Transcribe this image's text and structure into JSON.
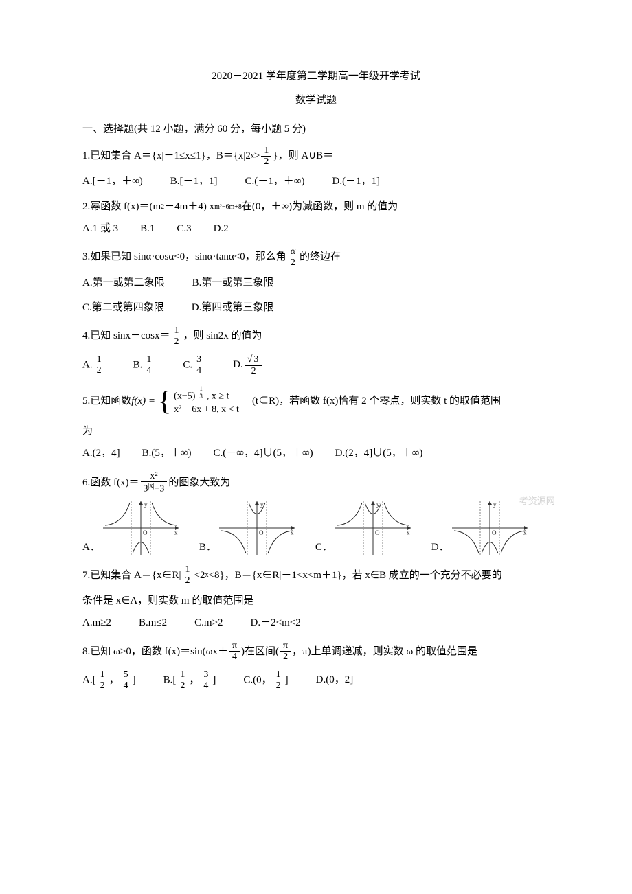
{
  "header": {
    "title": "2020－2021 学年度第二学期高一年级开学考试",
    "subtitle": "数学试题"
  },
  "section1": {
    "heading": "一、选择题(共 12 小题，满分 60 分，每小题 5 分)"
  },
  "q1": {
    "stem_a": "1.已知集合 A＝{x|－1≤x≤1}，B＝{x|2",
    "stem_sup": "x",
    "stem_b": ">",
    "frac_num": "1",
    "frac_den": "2",
    "stem_c": "}，则 A∪B＝",
    "opts": [
      "A.[－1，＋∞)",
      "B.[－1，1]",
      "C.(－1，＋∞)",
      "D.(－1，1]"
    ]
  },
  "q2": {
    "stem_a": "2.幂函数 f(x)＝(m",
    "sup1": "2",
    "stem_b": "－4m＋4) x",
    "sup2": "m²−6m+8",
    "stem_c": " 在(0，＋∞)为减函数，则 m 的值为",
    "opts": [
      "A.1 或 3",
      "B.1",
      "C.3",
      "D.2"
    ]
  },
  "q3": {
    "stem_a": "3.如果已知 sinα·cosα<0，sinα·tanα<0，那么角",
    "frac_num": "α",
    "frac_den": "2",
    "stem_b": "的终边在",
    "opts1": [
      "A.第一或第二象限",
      "B.第一或第三象限"
    ],
    "opts2": [
      "C.第二或第四象限",
      "D.第四或第三象限"
    ]
  },
  "q4": {
    "stem_a": "4.已知 sinx－cosx＝",
    "frac_num": "1",
    "frac_den": "2",
    "stem_b": "，则 sin2x 的值为",
    "optA_pre": "A.",
    "optA_num": "1",
    "optA_den": "2",
    "optB_pre": "B.",
    "optB_num": "1",
    "optB_den": "4",
    "optC_pre": "C.",
    "optC_num": "3",
    "optC_den": "4",
    "optD_pre": "D.",
    "optD_num_pre": "√",
    "optD_num_val": "3",
    "optD_den": "2"
  },
  "q5": {
    "stem_a": "5.已知函数 ",
    "fx": "f(x) =",
    "case1_a": "(x−5)",
    "case1_exp_num": "1",
    "case1_exp_den": "3",
    "case1_b": ", x ≥ t",
    "case2": "x² − 6x + 8, x < t",
    "stem_b": "　(t∈R)，若函数 f(x)恰有 2 个零点，则实数 t 的取值范围",
    "stem_c": "为",
    "opts": [
      "A.(2，4]",
      "B.(5，＋∞)",
      "C.(－∞，4]∪(5，＋∞)",
      "D.(2，4]∪(5，＋∞)"
    ]
  },
  "q6": {
    "stem_a": "6.函数 f(x)＝",
    "num": "x²",
    "den_a": "3",
    "den_sup": "|x|",
    "den_b": "−3",
    "stem_b": " 的图象大致为",
    "labels": [
      "A．",
      "B．",
      "C．",
      "D．"
    ],
    "watermark": "考资源网"
  },
  "q7": {
    "stem_a": "7.已知集合 A＝{x∈R|",
    "frac_num": "1",
    "frac_den": "2",
    "stem_b": "<2",
    "sup": "x",
    "stem_c": "<8}，B＝{x∈R|－1<x<m＋1}，若 x∈B 成立的一个充分不必要的",
    "stem_d": "条件是 x∈A，则实数 m 的取值范围是",
    "opts": [
      "A.m≥2",
      "B.m≤2",
      "C.m>2",
      "D.－2<m<2"
    ]
  },
  "q8": {
    "stem_a": "8.已知 ω>0，函数 f(x)＝sin(ωx＋",
    "f1_num": "π",
    "f1_den": "4",
    "stem_b": ")在区间(",
    "f2_num": "π",
    "f2_den": "2",
    "stem_c": "，π)上单调递减，则实数 ω 的取值范围是",
    "optA_pre": "A.[",
    "optA_f1n": "1",
    "optA_f1d": "2",
    "optA_mid": "，",
    "optA_f2n": "5",
    "optA_f2d": "4",
    "optA_post": "]",
    "optB_pre": "B.[",
    "optB_f1n": "1",
    "optB_f1d": "2",
    "optB_mid": "，",
    "optB_f2n": "3",
    "optB_f2d": "4",
    "optB_post": "]",
    "optC_pre": "C.(0，",
    "optC_fn": "1",
    "optC_fd": "2",
    "optC_post": "]",
    "optD_pre": "D.(0，2]"
  },
  "graphs": {
    "width": 110,
    "height": 78,
    "axis_color": "#303030",
    "curve_color": "#202020",
    "asymptote_color": "#808080",
    "grid_dash": "2,2",
    "line_width": 1.0
  }
}
